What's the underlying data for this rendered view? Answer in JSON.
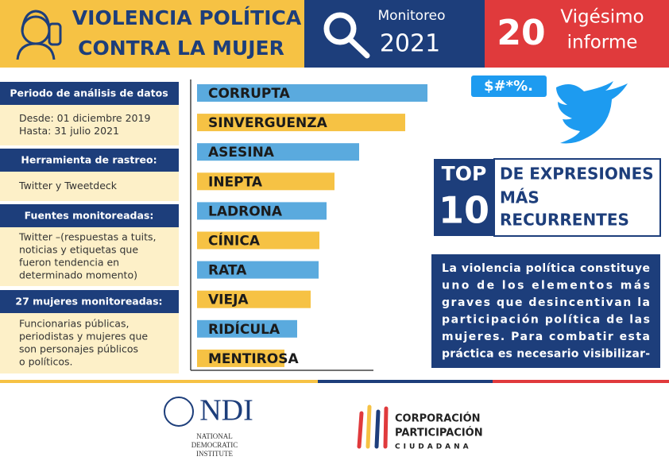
{
  "header": {
    "title_lines": [
      "VIOLENCIA POLÍTICA",
      "CONTRA LA MUJER"
    ],
    "monitor_label": "Monitoreo",
    "monitor_year": "2021",
    "report_number": "20",
    "report_lines": [
      "Vigésimo",
      "informe"
    ]
  },
  "sidebar": {
    "sections": [
      {
        "heading": "Periodo de análisis de datos",
        "lines": [
          "Desde: 01 diciembre 2019",
          "Hasta: 31 julio 2021"
        ]
      },
      {
        "heading": "Herramienta de rastreo:",
        "lines": [
          "Twitter y Tweetdeck"
        ]
      },
      {
        "heading": "Fuentes monitoreadas:",
        "lines": [
          "Twitter –(respuestas a tuits,",
          "noticias y etiquetas que",
          "fueron tendencia en",
          "determinado momento)"
        ]
      },
      {
        "heading": "27 mujeres monitoreadas:",
        "lines": [
          "Funcionarias públicas,",
          "periodistas y mujeres que",
          "son personajes públicos",
          "o políticos."
        ]
      }
    ]
  },
  "chart_data": {
    "type": "bar",
    "orientation": "horizontal",
    "categories": [
      "CORRUPTA",
      "SINVERGUENZA",
      "ASESINA",
      "INEPTA",
      "LADRONA",
      "CÍNICA",
      "RATA",
      "VIEJA",
      "RIDÍCULA",
      "MENTIROSA"
    ],
    "values": [
      290,
      262,
      204,
      173,
      163,
      154,
      153,
      143,
      126,
      110
    ],
    "colors": [
      "#5aaade",
      "#f6c244"
    ]
  },
  "bubble": "$#*%.",
  "top10": {
    "top": "TOP",
    "number": "10",
    "lines": [
      "DE EXPRESIONES",
      "MÁS",
      "RECURRENTES"
    ]
  },
  "paragraph": [
    "La violencia política constituye",
    "uno de los elementos más",
    "graves que desincentivan la",
    "participación política de las",
    "mujeres. Para combatir esta",
    "práctica es necesario visibilizar-"
  ],
  "footer": {
    "ndi": "NDI",
    "ndi_lines": [
      "NATIONAL",
      "DEMOCRATIC",
      "INSTITUTE"
    ],
    "cpc_lines": [
      "CORPORACIÓN",
      "PARTICIPACIÓN",
      "CIUDADANA"
    ]
  }
}
